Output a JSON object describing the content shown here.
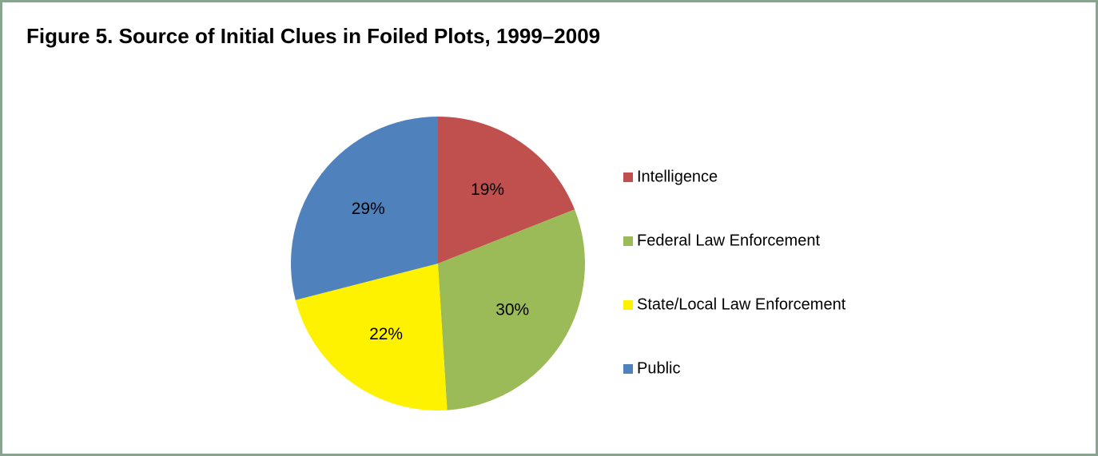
{
  "chart_data": {
    "type": "pie",
    "title": "Figure 5. Source of Initial Clues in Foiled Plots, 1999–2009",
    "categories": [
      "Intelligence",
      "Federal Law Enforcement",
      "State/Local Law Enforcement",
      "Public"
    ],
    "values": [
      19,
      30,
      22,
      29
    ],
    "value_labels": [
      "19%",
      "30%",
      "22%",
      "29%"
    ],
    "colors": [
      "#c0504d",
      "#9bbb59",
      "#fff200",
      "#4f81bd"
    ],
    "legend": "right"
  }
}
